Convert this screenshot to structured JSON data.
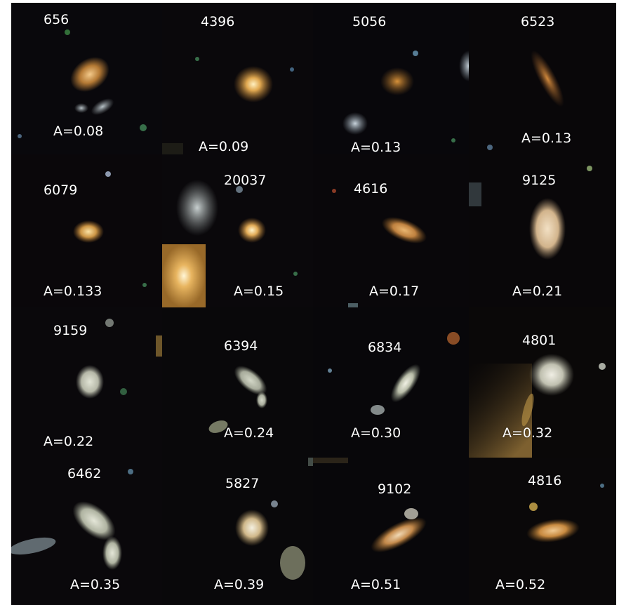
{
  "panels": [
    {
      "id": "656",
      "asym": "A=0.08"
    },
    {
      "id": "4396",
      "asym": "A=0.09"
    },
    {
      "id": "5056",
      "asym": "A=0.13"
    },
    {
      "id": "6523",
      "asym": "A=0.13"
    },
    {
      "id": "6079",
      "asym": "A=0.133"
    },
    {
      "id": "20037",
      "asym": "A=0.15"
    },
    {
      "id": "4616",
      "asym": "A=0.17"
    },
    {
      "id": "9125",
      "asym": "A=0.21"
    },
    {
      "id": "9159",
      "asym": "A=0.22"
    },
    {
      "id": "6394",
      "asym": "A=0.24"
    },
    {
      "id": "6834",
      "asym": "A=0.30"
    },
    {
      "id": "4801",
      "asym": "A=0.32"
    },
    {
      "id": "6462",
      "asym": "A=0.35"
    },
    {
      "id": "5827",
      "asym": "A=0.39"
    },
    {
      "id": "9102",
      "asym": "A=0.51"
    },
    {
      "id": "4816",
      "asym": "A=0.52"
    }
  ]
}
